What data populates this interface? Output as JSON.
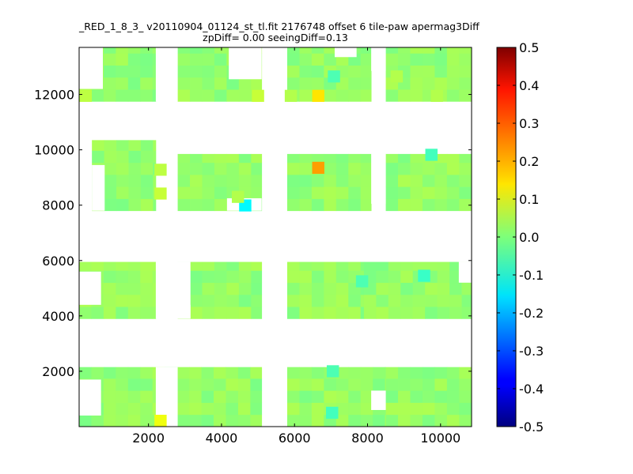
{
  "chart_data": {
    "type": "heatmap",
    "title": "_RED_1_8_3_ v20110904_01124_st_tl.fit 2176748 offset 6 tile-paw apermag3Diff",
    "subtitle": "zpDiff= 0.00 seeingDiff=0.13",
    "xlabel": "",
    "ylabel": "",
    "xlim": [
      100,
      10850
    ],
    "ylim": [
      0,
      13700
    ],
    "xticks": [
      "2000",
      "4000",
      "6000",
      "8000",
      "10000"
    ],
    "yticks": [
      "2000",
      "4000",
      "6000",
      "8000",
      "10000",
      "12000"
    ],
    "colorbar": {
      "colormap": "jet",
      "range": [
        -0.5,
        0.5
      ],
      "ticks": [
        "-0.5",
        "-0.4",
        "-0.3",
        "-0.2",
        "-0.1",
        "0.0",
        "0.1",
        "0.2",
        "0.3",
        "0.4",
        "0.5"
      ]
    },
    "cell": {
      "dx": 335,
      "dy": 435
    },
    "default_value": 0.02,
    "blocks": [
      {
        "x": [
          100,
          5100
        ],
        "y": [
          0,
          2150
        ]
      },
      {
        "x": [
          5800,
          8500
        ],
        "y": [
          0,
          2150
        ]
      },
      {
        "x": [
          8500,
          10850
        ],
        "y": [
          0,
          2150
        ]
      },
      {
        "x": [
          100,
          2200
        ],
        "y": [
          3900,
          5950
        ]
      },
      {
        "x": [
          2800,
          5100
        ],
        "y": [
          3900,
          5950
        ]
      },
      {
        "x": [
          5800,
          7900
        ],
        "y": [
          3900,
          5950
        ]
      },
      {
        "x": [
          7900,
          10850
        ],
        "y": [
          3900,
          5950
        ]
      },
      {
        "x": [
          450,
          2200
        ],
        "y": [
          7800,
          10350
        ]
      },
      {
        "x": [
          2800,
          5100
        ],
        "y": [
          7800,
          9850
        ]
      },
      {
        "x": [
          5800,
          8100
        ],
        "y": [
          7800,
          9850
        ]
      },
      {
        "x": [
          8500,
          10850
        ],
        "y": [
          7800,
          9850
        ]
      },
      {
        "x": [
          100,
          2200
        ],
        "y": [
          11750,
          13700
        ]
      },
      {
        "x": [
          2800,
          5100
        ],
        "y": [
          11750,
          13700
        ]
      },
      {
        "x": [
          5800,
          8100
        ],
        "y": [
          11750,
          13700
        ]
      },
      {
        "x": [
          8500,
          10850
        ],
        "y": [
          11750,
          13700
        ]
      }
    ],
    "gaps": [
      {
        "x": [
          100,
          700
        ],
        "y": [
          400,
          1700
        ]
      },
      {
        "x": [
          2200,
          2800
        ],
        "y": [
          0,
          2150
        ]
      },
      {
        "x": [
          8100,
          8500
        ],
        "y": [
          600,
          1300
        ]
      },
      {
        "x": [
          100,
          700
        ],
        "y": [
          4400,
          5600
        ]
      },
      {
        "x": [
          2200,
          3150
        ],
        "y": [
          3900,
          5950
        ]
      },
      {
        "x": [
          2800,
          3150
        ],
        "y": [
          3900,
          4400
        ]
      },
      {
        "x": [
          10500,
          10850
        ],
        "y": [
          5200,
          5950
        ]
      },
      {
        "x": [
          450,
          800
        ],
        "y": [
          7800,
          9450
        ]
      },
      {
        "x": [
          4150,
          5100
        ],
        "y": [
          7800,
          8250
        ]
      },
      {
        "x": [
          8100,
          8500
        ],
        "y": [
          8050,
          9850
        ]
      },
      {
        "x": [
          100,
          750
        ],
        "y": [
          12200,
          13700
        ]
      },
      {
        "x": [
          2200,
          2800
        ],
        "y": [
          11750,
          13700
        ]
      },
      {
        "x": [
          7100,
          7700
        ],
        "y": [
          13350,
          13700
        ]
      },
      {
        "x": [
          8100,
          8500
        ],
        "y": [
          12850,
          13700
        ]
      },
      {
        "x": [
          4200,
          5100
        ],
        "y": [
          12550,
          13700
        ]
      }
    ],
    "highlights": [
      {
        "x": 6650,
        "y": 11950,
        "value": 0.15
      },
      {
        "x": 6650,
        "y": 9350,
        "value": 0.22
      },
      {
        "x": 4650,
        "y": 7990,
        "value": -0.13
      },
      {
        "x": 2330,
        "y": 210,
        "value": 0.11
      },
      {
        "x": 2330,
        "y": 8420,
        "value": 0.07
      },
      {
        "x": 2330,
        "y": 9280,
        "value": 0.06
      },
      {
        "x": 5000,
        "y": 11950,
        "value": 0.07
      },
      {
        "x": 280,
        "y": 11950,
        "value": 0.06
      },
      {
        "x": 7080,
        "y": 12650,
        "value": -0.05
      },
      {
        "x": 9750,
        "y": 9820,
        "value": -0.06
      },
      {
        "x": 7050,
        "y": 2000,
        "value": -0.05
      },
      {
        "x": 7030,
        "y": 500,
        "value": -0.06
      },
      {
        "x": 9550,
        "y": 5450,
        "value": -0.07
      },
      {
        "x": 5900,
        "y": 11950,
        "value": 0.05
      },
      {
        "x": 9900,
        "y": 11950,
        "value": 0.05
      },
      {
        "x": 8800,
        "y": 12650,
        "value": 0.05
      },
      {
        "x": 4450,
        "y": 8300,
        "value": 0.05
      },
      {
        "x": 7850,
        "y": 5250,
        "value": -0.05
      }
    ]
  }
}
